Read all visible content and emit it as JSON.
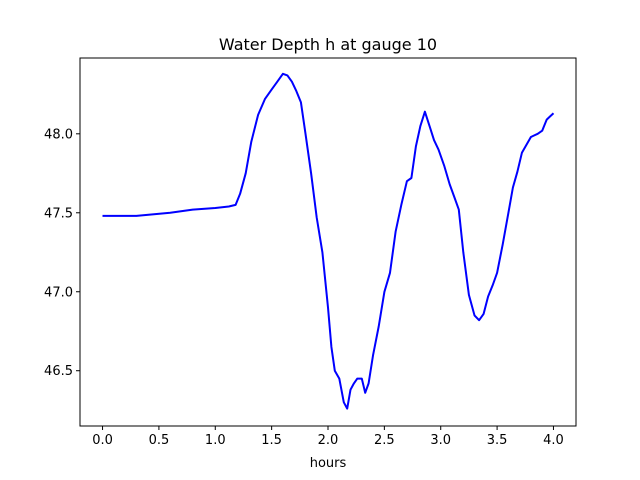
{
  "chart_data": {
    "type": "line",
    "title": "Water Depth h at gauge 10",
    "xlabel": "hours",
    "ylabel": "",
    "xlim": [
      -0.2,
      4.2
    ],
    "ylim": [
      46.15,
      48.48
    ],
    "xticks": [
      0.0,
      0.5,
      1.0,
      1.5,
      2.0,
      2.5,
      3.0,
      3.5,
      4.0
    ],
    "xtick_labels": [
      "0.0",
      "0.5",
      "1.0",
      "1.5",
      "2.0",
      "2.5",
      "3.0",
      "3.5",
      "4.0"
    ],
    "yticks": [
      46.5,
      47.0,
      47.5,
      48.0
    ],
    "ytick_labels": [
      "46.5",
      "47.0",
      "47.5",
      "48.0"
    ],
    "grid": false,
    "series": [
      {
        "color": "#0000ff",
        "x": [
          0.0,
          0.3,
          0.6,
          0.8,
          1.0,
          1.12,
          1.18,
          1.22,
          1.27,
          1.32,
          1.38,
          1.44,
          1.5,
          1.55,
          1.6,
          1.64,
          1.68,
          1.72,
          1.76,
          1.8,
          1.85,
          1.9,
          1.95,
          2.0,
          2.03,
          2.06,
          2.1,
          2.14,
          2.17,
          2.2,
          2.23,
          2.26,
          2.3,
          2.33,
          2.36,
          2.4,
          2.45,
          2.5,
          2.55,
          2.6,
          2.65,
          2.7,
          2.74,
          2.78,
          2.82,
          2.86,
          2.9,
          2.94,
          2.98,
          3.03,
          3.08,
          3.12,
          3.16,
          3.2,
          3.25,
          3.3,
          3.34,
          3.38,
          3.42,
          3.46,
          3.5,
          3.55,
          3.6,
          3.64,
          3.68,
          3.72,
          3.76,
          3.8,
          3.83,
          3.86,
          3.9,
          3.94,
          3.97,
          4.0
        ],
        "y": [
          47.48,
          47.48,
          47.5,
          47.52,
          47.53,
          47.54,
          47.55,
          47.62,
          47.75,
          47.95,
          48.12,
          48.22,
          48.28,
          48.33,
          48.38,
          48.37,
          48.33,
          48.27,
          48.2,
          48.0,
          47.75,
          47.47,
          47.25,
          46.9,
          46.65,
          46.5,
          46.45,
          46.3,
          46.26,
          46.38,
          46.42,
          46.45,
          46.45,
          46.36,
          46.42,
          46.6,
          46.78,
          47.0,
          47.12,
          47.38,
          47.55,
          47.7,
          47.72,
          47.92,
          48.05,
          48.14,
          48.05,
          47.96,
          47.9,
          47.8,
          47.68,
          47.6,
          47.52,
          47.25,
          46.98,
          46.85,
          46.82,
          46.86,
          46.97,
          47.04,
          47.12,
          47.3,
          47.5,
          47.66,
          47.76,
          47.88,
          47.93,
          47.98,
          47.99,
          48.0,
          48.02,
          48.09,
          48.11,
          48.13
        ]
      }
    ]
  }
}
